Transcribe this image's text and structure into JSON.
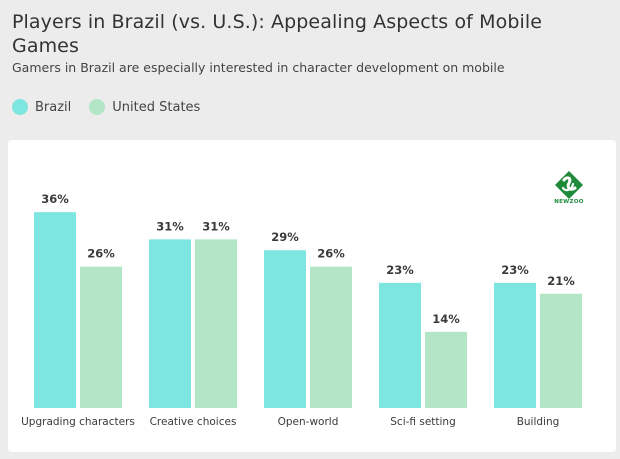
{
  "title": "Players in Brazil (vs. U.S.): Appealing Aspects of Mobile Games",
  "subtitle": "Gamers in Brazil are especially interested in character development on mobile",
  "logo": {
    "text": "NEWZOO",
    "icon": "newzoo-diamond-logo"
  },
  "colors": {
    "brazil": "#7de6e0",
    "us": "#b3e6c6",
    "panel": "#ffffff",
    "background": "#ececec"
  },
  "chart_data": {
    "type": "bar",
    "categories": [
      "Upgrading characters",
      "Creative choices",
      "Open-world",
      "Sci-fi setting",
      "Building"
    ],
    "series": [
      {
        "name": "Brazil",
        "values": [
          36,
          31,
          29,
          23,
          23
        ],
        "labels": [
          "36%",
          "31%",
          "29%",
          "23%",
          "23%"
        ],
        "color": "#7de6e0"
      },
      {
        "name": "United States",
        "values": [
          26,
          31,
          26,
          14,
          21
        ],
        "labels": [
          "26%",
          "31%",
          "26%",
          "14%",
          "21%"
        ],
        "color": "#b3e6c6"
      }
    ],
    "ylim": [
      0,
      38
    ],
    "grid": false,
    "legend": "top-left"
  }
}
